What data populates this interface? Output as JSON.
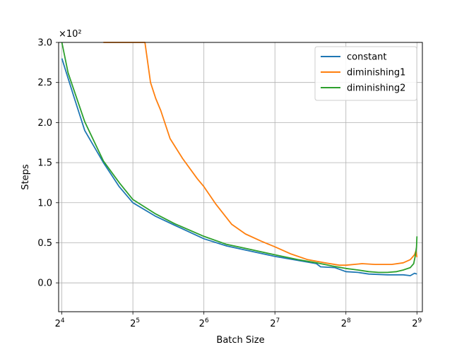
{
  "chart_data": {
    "type": "line",
    "xlabel": "Batch Size",
    "ylabel": "Steps",
    "y_scale_label": "×10²",
    "x_scale": "log2",
    "xlim": [
      15.5,
      540
    ],
    "ylim": [
      -36,
      300
    ],
    "grid": true,
    "legend_position": "top-right",
    "x_ticks": [
      {
        "value": 16,
        "base": "2",
        "exp": "4"
      },
      {
        "value": 32,
        "base": "2",
        "exp": "5"
      },
      {
        "value": 64,
        "base": "2",
        "exp": "6"
      },
      {
        "value": 128,
        "base": "2",
        "exp": "7"
      },
      {
        "value": 256,
        "base": "2",
        "exp": "8"
      },
      {
        "value": 512,
        "base": "2",
        "exp": "9"
      }
    ],
    "y_ticks": [
      {
        "value": 0,
        "label": "0.0"
      },
      {
        "value": 50,
        "label": "0.5"
      },
      {
        "value": 100,
        "label": "1.0"
      },
      {
        "value": 150,
        "label": "1.5"
      },
      {
        "value": 200,
        "label": "2.0"
      },
      {
        "value": 250,
        "label": "2.5"
      },
      {
        "value": 300,
        "label": "3.0"
      }
    ],
    "series": [
      {
        "name": "constant",
        "color": "#1f77b4",
        "points": [
          [
            16,
            280
          ],
          [
            18,
            232
          ],
          [
            20,
            190
          ],
          [
            24,
            150
          ],
          [
            28,
            120
          ],
          [
            32,
            100
          ],
          [
            40,
            83
          ],
          [
            48,
            72
          ],
          [
            64,
            55
          ],
          [
            80,
            46
          ],
          [
            96,
            41
          ],
          [
            128,
            33
          ],
          [
            160,
            28
          ],
          [
            192,
            24
          ],
          [
            200,
            20
          ],
          [
            230,
            19
          ],
          [
            256,
            14
          ],
          [
            288,
            13
          ],
          [
            320,
            11
          ],
          [
            384,
            10
          ],
          [
            448,
            10
          ],
          [
            480,
            9
          ],
          [
            500,
            12
          ],
          [
            512,
            11
          ]
        ]
      },
      {
        "name": "diminishing1",
        "color": "#ff7f0e",
        "points": [
          [
            24,
            300
          ],
          [
            36,
            300
          ],
          [
            38,
            250
          ],
          [
            40,
            230
          ],
          [
            42,
            215
          ],
          [
            46,
            180
          ],
          [
            52,
            155
          ],
          [
            60,
            130
          ],
          [
            64,
            120
          ],
          [
            72,
            98
          ],
          [
            84,
            73
          ],
          [
            96,
            61
          ],
          [
            112,
            52
          ],
          [
            128,
            45
          ],
          [
            150,
            36
          ],
          [
            176,
            29
          ],
          [
            208,
            25
          ],
          [
            240,
            22
          ],
          [
            256,
            22
          ],
          [
            300,
            24
          ],
          [
            340,
            23
          ],
          [
            400,
            23
          ],
          [
            448,
            25
          ],
          [
            480,
            29
          ],
          [
            500,
            35
          ],
          [
            507,
            40
          ],
          [
            512,
            32
          ]
        ]
      },
      {
        "name": "diminishing2",
        "color": "#2ca02c",
        "points": [
          [
            16,
            300
          ],
          [
            17,
            262
          ],
          [
            20,
            201
          ],
          [
            24,
            152
          ],
          [
            28,
            125
          ],
          [
            32,
            104
          ],
          [
            40,
            86
          ],
          [
            48,
            74
          ],
          [
            64,
            58
          ],
          [
            80,
            48
          ],
          [
            96,
            43
          ],
          [
            128,
            35
          ],
          [
            160,
            29
          ],
          [
            192,
            25
          ],
          [
            224,
            21
          ],
          [
            256,
            18
          ],
          [
            288,
            16
          ],
          [
            320,
            14
          ],
          [
            352,
            13
          ],
          [
            384,
            13
          ],
          [
            420,
            14
          ],
          [
            448,
            16
          ],
          [
            480,
            19
          ],
          [
            496,
            24
          ],
          [
            504,
            34
          ],
          [
            510,
            45
          ],
          [
            512,
            58
          ]
        ]
      }
    ]
  }
}
